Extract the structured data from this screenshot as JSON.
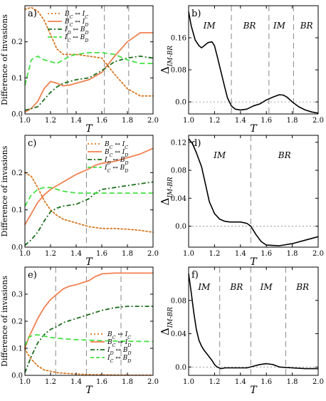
{
  "colors": {
    "bc_ic": "#d9761f",
    "bc_id": "#f08050",
    "id_bd": "#1b6e1b",
    "ic_bd": "#44e044",
    "delta": "#000000",
    "ref": "#888888"
  },
  "chart_data": [
    {
      "panel": "a)",
      "type": "line",
      "xlabel": "T",
      "ylabel": "Difference of invasions",
      "xlim": [
        1.0,
        2.0
      ],
      "ylim": [
        0,
        0.3
      ],
      "xticks": [
        1.0,
        1.2,
        1.4,
        1.6,
        1.8,
        2.0
      ],
      "yticks": [
        0.0,
        0.1,
        0.2
      ],
      "vlines": [
        1.33,
        1.62,
        1.81
      ],
      "legend": "top-left",
      "series": [
        {
          "name": "B_C ↔ I_C",
          "key": "bc_ic",
          "style": "dotted",
          "x": [
            1.0,
            1.05,
            1.1,
            1.15,
            1.2,
            1.25,
            1.3,
            1.35,
            1.4,
            1.5,
            1.6,
            1.7,
            1.8,
            1.9,
            2.0
          ],
          "values": [
            0.29,
            0.295,
            0.285,
            0.26,
            0.22,
            0.18,
            0.165,
            0.165,
            0.165,
            0.16,
            0.155,
            0.11,
            0.07,
            0.05,
            0.05
          ]
        },
        {
          "name": "B_C ↔ I_D",
          "key": "bc_id",
          "style": "solid",
          "x": [
            1.0,
            1.05,
            1.1,
            1.15,
            1.2,
            1.25,
            1.3,
            1.35,
            1.4,
            1.5,
            1.6,
            1.7,
            1.8,
            1.9,
            2.0
          ],
          "values": [
            0.005,
            0.015,
            0.035,
            0.07,
            0.09,
            0.085,
            0.078,
            0.08,
            0.085,
            0.095,
            0.115,
            0.16,
            0.2,
            0.225,
            0.225
          ]
        },
        {
          "name": "I_D ↔ B_D",
          "key": "id_bd",
          "style": "dashdot",
          "x": [
            1.0,
            1.05,
            1.1,
            1.15,
            1.2,
            1.25,
            1.3,
            1.35,
            1.4,
            1.5,
            1.6,
            1.7,
            1.8,
            1.9,
            2.0
          ],
          "values": [
            0.01,
            0.015,
            0.02,
            0.04,
            0.06,
            0.075,
            0.085,
            0.09,
            0.095,
            0.1,
            0.12,
            0.145,
            0.155,
            0.16,
            0.155
          ]
        },
        {
          "name": "I_C ↔ B_D",
          "key": "ic_bd",
          "style": "dashed",
          "x": [
            1.0,
            1.05,
            1.1,
            1.15,
            1.2,
            1.25,
            1.3,
            1.35,
            1.4,
            1.5,
            1.6,
            1.7,
            1.8,
            1.9,
            2.0
          ],
          "values": [
            0.08,
            0.15,
            0.16,
            0.15,
            0.145,
            0.14,
            0.15,
            0.16,
            0.165,
            0.17,
            0.17,
            0.165,
            0.15,
            0.14,
            0.14
          ]
        }
      ]
    },
    {
      "panel": "b)",
      "type": "line",
      "xlabel": "T",
      "ylabel": "Δ_{IM-BR}",
      "xlim": [
        1.0,
        2.0
      ],
      "ylim": [
        -0.03,
        0.24
      ],
      "xticks": [
        1.0,
        1.2,
        1.4,
        1.6,
        1.8,
        2.0
      ],
      "yticks": [
        0.0,
        0.08,
        0.16
      ],
      "vlines": [
        1.33,
        1.62,
        1.81
      ],
      "zero_line": true,
      "regions": [
        {
          "label": "IM",
          "x": 1.16
        },
        {
          "label": "BR",
          "x": 1.47
        },
        {
          "label": "IM",
          "x": 1.7
        },
        {
          "label": "BR",
          "x": 1.91
        }
      ],
      "series": [
        {
          "name": "",
          "key": "delta",
          "style": "solid",
          "x": [
            1.0,
            1.02,
            1.05,
            1.08,
            1.1,
            1.12,
            1.15,
            1.18,
            1.2,
            1.22,
            1.25,
            1.28,
            1.3,
            1.33,
            1.36,
            1.4,
            1.45,
            1.5,
            1.55,
            1.6,
            1.65,
            1.7,
            1.73,
            1.76,
            1.8,
            1.85,
            1.9,
            1.95,
            2.0
          ],
          "values": [
            0.225,
            0.19,
            0.155,
            0.14,
            0.135,
            0.14,
            0.148,
            0.15,
            0.14,
            0.115,
            0.075,
            0.035,
            0.01,
            -0.01,
            -0.018,
            -0.02,
            -0.018,
            -0.01,
            -0.005,
            0.005,
            0.012,
            0.018,
            0.017,
            0.012,
            0.0,
            -0.012,
            -0.02,
            -0.025,
            -0.028
          ]
        }
      ]
    },
    {
      "panel": "c)",
      "type": "line",
      "xlabel": "T",
      "ylabel": "Difference of invasions",
      "xlim": [
        1.0,
        2.0
      ],
      "ylim": [
        0,
        0.3
      ],
      "xticks": [
        1.0,
        1.2,
        1.4,
        1.6,
        1.8,
        2.0
      ],
      "yticks": [
        0.0,
        0.1,
        0.2
      ],
      "vlines": [
        1.48
      ],
      "legend": "top-right",
      "series": [
        {
          "name": "B_C ↔ I_C",
          "key": "bc_ic",
          "style": "dotted",
          "x": [
            1.0,
            1.05,
            1.1,
            1.15,
            1.2,
            1.25,
            1.3,
            1.35,
            1.4,
            1.45,
            1.5,
            1.6,
            1.7,
            1.8,
            1.9,
            2.0
          ],
          "values": [
            0.2,
            0.19,
            0.16,
            0.125,
            0.1,
            0.085,
            0.075,
            0.07,
            0.065,
            0.06,
            0.055,
            0.05,
            0.05,
            0.048,
            0.045,
            0.04
          ]
        },
        {
          "name": "B_C ↔ I_D",
          "key": "bc_id",
          "style": "solid",
          "x": [
            1.0,
            1.05,
            1.1,
            1.15,
            1.2,
            1.25,
            1.3,
            1.4,
            1.5,
            1.55,
            1.6,
            1.7,
            1.8,
            1.9,
            2.0
          ],
          "values": [
            0.06,
            0.09,
            0.12,
            0.14,
            0.155,
            0.165,
            0.175,
            0.195,
            0.21,
            0.22,
            0.225,
            0.23,
            0.24,
            0.25,
            0.265
          ]
        },
        {
          "name": "I_D ↔ B_D",
          "key": "id_bd",
          "style": "dashdot",
          "x": [
            1.0,
            1.05,
            1.1,
            1.15,
            1.2,
            1.25,
            1.3,
            1.4,
            1.5,
            1.55,
            1.6,
            1.7,
            1.8,
            1.9,
            2.0
          ],
          "values": [
            0.005,
            0.02,
            0.04,
            0.07,
            0.095,
            0.105,
            0.11,
            0.115,
            0.13,
            0.145,
            0.155,
            0.16,
            0.165,
            0.17,
            0.175
          ]
        },
        {
          "name": "I_C ↔ B_D",
          "key": "ic_bd",
          "style": "dashed",
          "x": [
            1.0,
            1.05,
            1.1,
            1.15,
            1.2,
            1.25,
            1.3,
            1.4,
            1.5,
            1.6,
            1.7,
            1.8,
            1.9,
            2.0
          ],
          "values": [
            0.11,
            0.14,
            0.155,
            0.16,
            0.16,
            0.155,
            0.15,
            0.145,
            0.145,
            0.145,
            0.145,
            0.145,
            0.145,
            0.145
          ]
        }
      ]
    },
    {
      "panel": "d)",
      "type": "line",
      "xlabel": "T",
      "ylabel": "Δ_{IM-BR}",
      "xlim": [
        1.0,
        2.0
      ],
      "ylim": [
        -0.03,
        0.13
      ],
      "xticks": [
        1.0,
        1.2,
        1.4,
        1.6,
        1.8,
        2.0
      ],
      "yticks": [
        0.0,
        0.04,
        0.08,
        0.12
      ],
      "vlines": [
        1.48
      ],
      "zero_line": true,
      "regions": [
        {
          "label": "IM",
          "x": 1.24
        },
        {
          "label": "BR",
          "x": 1.74
        }
      ],
      "series": [
        {
          "name": "",
          "key": "delta",
          "style": "solid",
          "x": [
            1.0,
            1.03,
            1.06,
            1.1,
            1.13,
            1.16,
            1.2,
            1.24,
            1.28,
            1.32,
            1.36,
            1.4,
            1.45,
            1.48,
            1.52,
            1.56,
            1.6,
            1.7,
            1.8,
            1.9,
            2.0
          ],
          "values": [
            0.125,
            0.118,
            0.105,
            0.085,
            0.06,
            0.035,
            0.018,
            0.01,
            0.007,
            0.006,
            0.006,
            0.006,
            0.004,
            0.0,
            -0.012,
            -0.022,
            -0.027,
            -0.028,
            -0.025,
            -0.02,
            -0.015
          ]
        }
      ]
    },
    {
      "panel": "e)",
      "type": "line",
      "xlabel": "T",
      "ylabel": "Difference of invasions",
      "xlim": [
        1.0,
        2.0
      ],
      "ylim": [
        0,
        0.4
      ],
      "xticks": [
        1.0,
        1.2,
        1.4,
        1.6,
        1.8,
        2.0
      ],
      "yticks": [
        0.0,
        0.1,
        0.2,
        0.3
      ],
      "vlines": [
        1.24,
        1.48,
        1.75
      ],
      "legend": "bottom-right",
      "series": [
        {
          "name": "B_C ↔ I_C",
          "key": "bc_ic",
          "style": "dotted",
          "x": [
            1.0,
            1.02,
            1.05,
            1.1,
            1.15,
            1.2,
            1.25,
            1.3,
            1.4,
            1.5,
            1.6,
            1.8,
            2.0
          ],
          "values": [
            0.1,
            0.08,
            0.06,
            0.035,
            0.02,
            0.015,
            0.01,
            0.008,
            0.005,
            0.003,
            0.002,
            0.001,
            0.001
          ]
        },
        {
          "name": "B_C ↔ I_D",
          "key": "bc_id",
          "style": "solid",
          "x": [
            1.0,
            1.03,
            1.06,
            1.1,
            1.15,
            1.2,
            1.25,
            1.3,
            1.35,
            1.4,
            1.5,
            1.55,
            1.6,
            1.7,
            1.8,
            1.9,
            2.0
          ],
          "values": [
            0.1,
            0.14,
            0.17,
            0.21,
            0.25,
            0.28,
            0.3,
            0.32,
            0.33,
            0.335,
            0.35,
            0.365,
            0.375,
            0.378,
            0.378,
            0.378,
            0.378
          ]
        },
        {
          "name": "I_D ↔ B_D",
          "key": "id_bd",
          "style": "dashdot",
          "x": [
            1.0,
            1.05,
            1.1,
            1.15,
            1.2,
            1.25,
            1.3,
            1.4,
            1.5,
            1.6,
            1.7,
            1.8,
            1.9,
            2.0
          ],
          "values": [
            0.01,
            0.07,
            0.12,
            0.15,
            0.17,
            0.18,
            0.195,
            0.21,
            0.225,
            0.24,
            0.25,
            0.255,
            0.255,
            0.255
          ]
        },
        {
          "name": "I_C ↔ B_D",
          "key": "ic_bd",
          "style": "dashed",
          "x": [
            1.0,
            1.03,
            1.06,
            1.1,
            1.15,
            1.2,
            1.3,
            1.4,
            1.5,
            1.6,
            1.8,
            2.0
          ],
          "values": [
            0.11,
            0.14,
            0.148,
            0.15,
            0.145,
            0.14,
            0.135,
            0.132,
            0.13,
            0.128,
            0.126,
            0.125
          ]
        }
      ]
    },
    {
      "panel": "f)",
      "type": "line",
      "xlabel": "T",
      "ylabel": "Δ_{IM-BR}",
      "xlim": [
        1.0,
        2.0
      ],
      "ylim": [
        -0.01,
        0.12
      ],
      "xticks": [
        1.0,
        1.2,
        1.4,
        1.6,
        1.8,
        2.0
      ],
      "yticks": [
        0.0,
        0.04,
        0.08
      ],
      "vlines": [
        1.24,
        1.48,
        1.75
      ],
      "zero_line": true,
      "regions": [
        {
          "label": "IM",
          "x": 1.12
        },
        {
          "label": "BR",
          "x": 1.37
        },
        {
          "label": "IM",
          "x": 1.6
        },
        {
          "label": "BR",
          "x": 1.88
        }
      ],
      "series": [
        {
          "name": "",
          "key": "delta",
          "style": "solid",
          "x": [
            1.0,
            1.02,
            1.04,
            1.06,
            1.08,
            1.1,
            1.12,
            1.15,
            1.18,
            1.2,
            1.22,
            1.25,
            1.28,
            1.3,
            1.35,
            1.4,
            1.45,
            1.5,
            1.55,
            1.6,
            1.65,
            1.7,
            1.8,
            1.9,
            2.0
          ],
          "values": [
            0.112,
            0.09,
            0.065,
            0.045,
            0.032,
            0.025,
            0.02,
            0.014,
            0.008,
            0.003,
            0.0,
            -0.002,
            -0.001,
            -0.001,
            -0.001,
            -0.001,
            -0.001,
            0.001,
            0.003,
            0.004,
            0.003,
            0.0,
            -0.001,
            -0.002,
            -0.002
          ]
        }
      ]
    }
  ]
}
